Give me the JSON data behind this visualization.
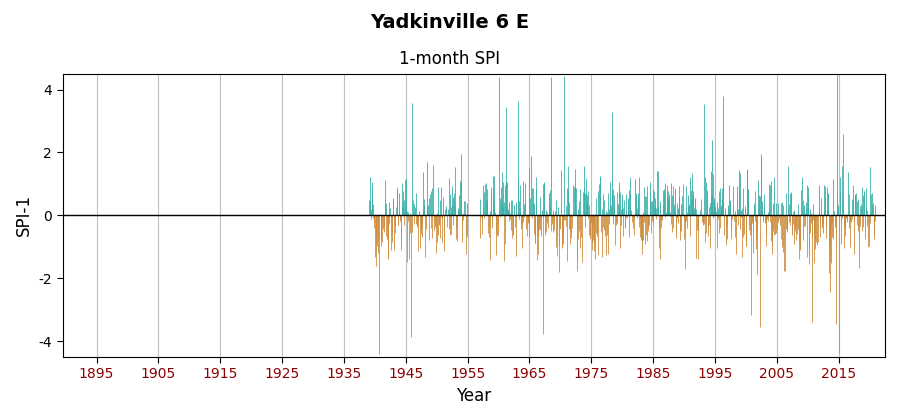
{
  "title": "Yadkinville 6 E",
  "subtitle": "1-month SPI",
  "xlabel": "Year",
  "ylabel": "SPI-1",
  "ylim": [
    -4.5,
    4.5
  ],
  "yticks": [
    -4,
    -2,
    0,
    2,
    4
  ],
  "xlim_left": 1889.5,
  "xlim_right": 2022.5,
  "xticks": [
    1895,
    1905,
    1915,
    1925,
    1935,
    1945,
    1955,
    1965,
    1975,
    1985,
    1995,
    2005,
    2015
  ],
  "color_positive": "#3aafa9",
  "color_negative": "#cd8c3c",
  "color_zero_line": "#000000",
  "color_grid": "#c0c0c0",
  "color_border": "#000000",
  "background_color": "#ffffff",
  "title_fontsize": 14,
  "subtitle_fontsize": 12,
  "axis_label_fontsize": 12,
  "tick_fontsize": 10,
  "segment1_start": 1939,
  "segment1_end": 1955,
  "segment2_start": 1957,
  "segment2_end": 2021,
  "seed": 42
}
